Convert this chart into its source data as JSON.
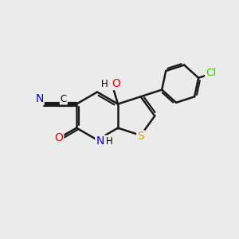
{
  "background_color": "#ebebeb",
  "atom_colors": {
    "C": "#000000",
    "N": "#0000ee",
    "O": "#ee0000",
    "S": "#ccaa00",
    "Cl": "#33cc00",
    "H": "#000000"
  },
  "bond_color": "#1a1a1a",
  "bond_width": 1.8,
  "figsize": [
    3.0,
    3.0
  ],
  "dpi": 100
}
